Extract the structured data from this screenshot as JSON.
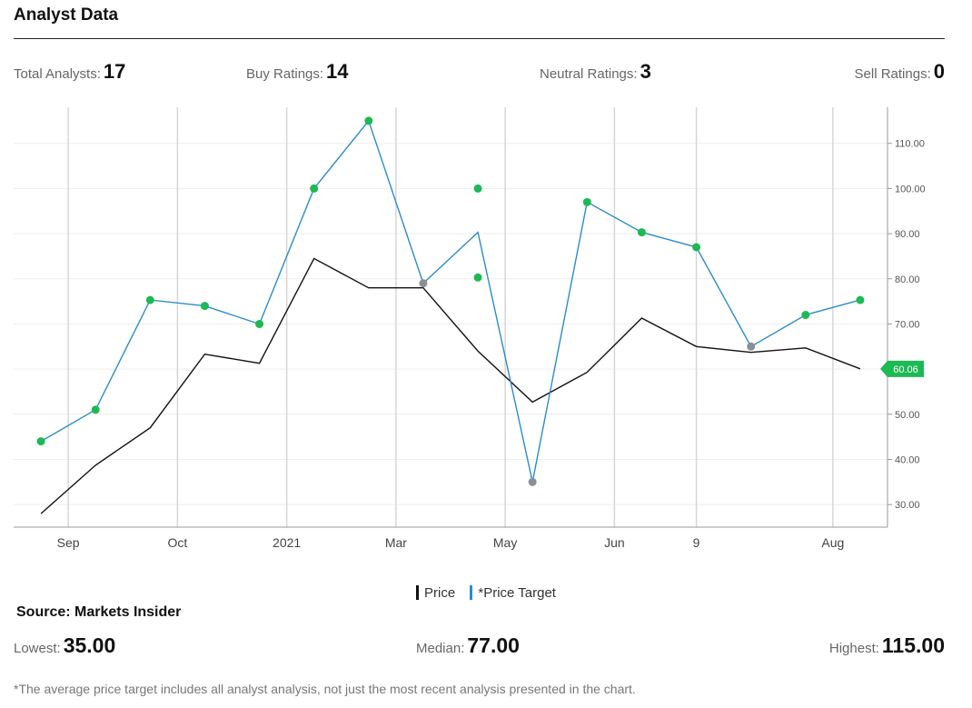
{
  "header": {
    "title": "Analyst Data"
  },
  "stats": {
    "total_label": "Total Analysts:",
    "total_value": "17",
    "buy_label": "Buy Ratings:",
    "buy_value": "14",
    "neutral_label": "Neutral Ratings:",
    "neutral_value": "3",
    "sell_label": "Sell Ratings:",
    "sell_value": "0"
  },
  "legend": {
    "price": "Price",
    "target": "*Price Target"
  },
  "source": "Source: Markets Insider",
  "summary": {
    "lowest_label": "Lowest:",
    "lowest_value": "35.00",
    "median_label": "Median:",
    "median_value": "77.00",
    "highest_label": "Highest:",
    "highest_value": "115.00"
  },
  "footnote": "*The average price target includes all analyst analysis, not just the most recent analysis presented in the chart.",
  "chart_data": {
    "type": "line",
    "title": "",
    "xlabel": "",
    "ylabel": "",
    "x_tick_labels": [
      "Sep",
      "Oct",
      "2021",
      "Mar",
      "May",
      "Jun",
      "9",
      "Aug"
    ],
    "x_tick_index": [
      0.5,
      2.5,
      4.5,
      6.5,
      8.5,
      10.5,
      12,
      14.5
    ],
    "y_ticks": [
      30,
      40,
      50,
      60,
      70,
      80,
      90,
      100,
      110
    ],
    "y_tick_labels": [
      "30.00",
      "40.00",
      "50.00",
      "60.00",
      "70.00",
      "80.00",
      "90.00",
      "100.00",
      "110.00"
    ],
    "ylim": [
      25,
      118
    ],
    "x_range": [
      -0.5,
      15.5
    ],
    "grid": true,
    "current_price_label": "60.06",
    "current_price": 60.06,
    "colors": {
      "price": "#111111",
      "target": "#2b8ccb",
      "buy": "#1db954",
      "neutral": "#8a8f96",
      "grid": "#d6d6d6"
    },
    "series": [
      {
        "name": "Price",
        "x": [
          0,
          1,
          2,
          3,
          4,
          5,
          6,
          7,
          8,
          9,
          10,
          11,
          12,
          13,
          14,
          15
        ],
        "values": [
          28,
          38.7,
          47,
          63.3,
          61.3,
          84.5,
          78,
          78,
          64,
          52.7,
          59.3,
          71.3,
          65,
          63.7,
          64.7,
          60.06
        ]
      },
      {
        "name": "*Price Target",
        "x": [
          0,
          1,
          2,
          3,
          4,
          5,
          6,
          7,
          8,
          9,
          10,
          11,
          12,
          13,
          14,
          15
        ],
        "values": [
          44,
          51,
          75.3,
          74,
          70,
          100,
          115,
          79,
          90.3,
          35,
          97,
          90.3,
          87,
          65,
          72,
          75.3
        ]
      }
    ],
    "rating_points": [
      {
        "x": 0,
        "value": 44,
        "rating": "buy"
      },
      {
        "x": 1,
        "value": 51,
        "rating": "buy"
      },
      {
        "x": 2,
        "value": 75.3,
        "rating": "buy"
      },
      {
        "x": 3,
        "value": 74,
        "rating": "buy"
      },
      {
        "x": 4,
        "value": 70,
        "rating": "buy"
      },
      {
        "x": 5,
        "value": 100,
        "rating": "buy"
      },
      {
        "x": 6,
        "value": 115,
        "rating": "buy"
      },
      {
        "x": 7,
        "value": 79,
        "rating": "neutral"
      },
      {
        "x": 8,
        "value": 100,
        "rating": "buy"
      },
      {
        "x": 8,
        "value": 80.3,
        "rating": "buy"
      },
      {
        "x": 9,
        "value": 35,
        "rating": "neutral"
      },
      {
        "x": 10,
        "value": 97,
        "rating": "buy"
      },
      {
        "x": 11,
        "value": 90.3,
        "rating": "buy"
      },
      {
        "x": 12,
        "value": 87,
        "rating": "buy"
      },
      {
        "x": 13,
        "value": 65,
        "rating": "neutral"
      },
      {
        "x": 14,
        "value": 72,
        "rating": "buy"
      },
      {
        "x": 15,
        "value": 75.3,
        "rating": "buy"
      }
    ]
  }
}
